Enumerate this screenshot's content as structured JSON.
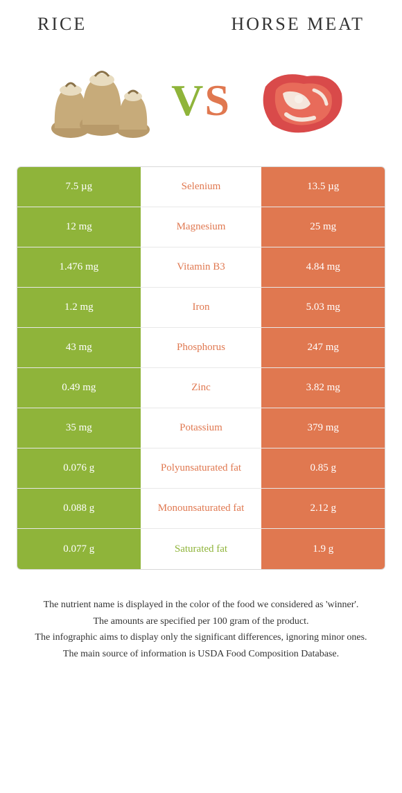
{
  "header": {
    "left_title": "Rice",
    "right_title": "Horse meat"
  },
  "vs": {
    "v": "V",
    "s": "S"
  },
  "colors": {
    "left_bg": "#8fb43a",
    "right_bg": "#e07850",
    "mid_bg": "#ffffff",
    "row_border": "#e8e8e8"
  },
  "rows": [
    {
      "left": "7.5 µg",
      "name": "Selenium",
      "right": "13.5 µg",
      "winner": "right"
    },
    {
      "left": "12 mg",
      "name": "Magnesium",
      "right": "25 mg",
      "winner": "right"
    },
    {
      "left": "1.476 mg",
      "name": "Vitamin B3",
      "right": "4.84 mg",
      "winner": "right"
    },
    {
      "left": "1.2 mg",
      "name": "Iron",
      "right": "5.03 mg",
      "winner": "right"
    },
    {
      "left": "43 mg",
      "name": "Phosphorus",
      "right": "247 mg",
      "winner": "right"
    },
    {
      "left": "0.49 mg",
      "name": "Zinc",
      "right": "3.82 mg",
      "winner": "right"
    },
    {
      "left": "35 mg",
      "name": "Potassium",
      "right": "379 mg",
      "winner": "right"
    },
    {
      "left": "0.076 g",
      "name": "Polyunsaturated fat",
      "right": "0.85 g",
      "winner": "right"
    },
    {
      "left": "0.088 g",
      "name": "Monounsaturated fat",
      "right": "2.12 g",
      "winner": "right"
    },
    {
      "left": "0.077 g",
      "name": "Saturated fat",
      "right": "1.9 g",
      "winner": "left"
    }
  ],
  "footer": {
    "line1": "The nutrient name is displayed in the color of the food we considered as 'winner'.",
    "line2": "The amounts are specified per 100 gram of the product.",
    "line3": "The infographic aims to display only the significant differences, ignoring minor ones.",
    "line4": "The main source of information is USDA Food Composition Database."
  }
}
